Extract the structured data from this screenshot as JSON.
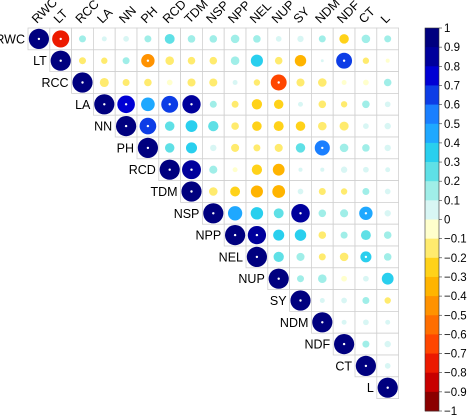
{
  "chart_data": {
    "type": "heatmap",
    "style": "upper-triangle correlation matrix, circles sized and colored by coefficient",
    "variables": [
      "RWC",
      "LT",
      "RCC",
      "LA",
      "NN",
      "PH",
      "RCD",
      "TDM",
      "NSP",
      "NPP",
      "NEL",
      "NUP",
      "SY",
      "NDM",
      "NDF",
      "CT",
      "L"
    ],
    "matrix": [
      [
        1,
        -0.72,
        0.12,
        0.06,
        0.08,
        0.12,
        0.24,
        0.14,
        0.14,
        0.18,
        0.14,
        0.08,
        0.1,
        0.12,
        -0.22,
        0.18,
        0.12
      ],
      [
        null,
        1,
        -0.12,
        -0.1,
        0.12,
        -0.44,
        -0.18,
        -0.14,
        -0.14,
        0.18,
        0.36,
        -0.14,
        -0.32,
        0.02,
        0.62,
        -0.1,
        -0.04
      ],
      [
        null,
        null,
        1,
        -0.2,
        -0.12,
        -0.14,
        -0.08,
        -0.16,
        -0.16,
        0.06,
        -0.1,
        -0.62,
        -0.16,
        -0.18,
        -0.06,
        -0.08,
        0.14
      ],
      [
        null,
        null,
        null,
        1,
        0.76,
        0.46,
        0.7,
        0.82,
        0.12,
        -0.12,
        -0.26,
        -0.22,
        0.06,
        -0.14,
        -0.1,
        0.14,
        0.08
      ],
      [
        null,
        null,
        null,
        null,
        1,
        0.68,
        0.22,
        0.34,
        0.26,
        -0.14,
        -0.22,
        -0.24,
        -0.22,
        -0.18,
        -0.2,
        0.08,
        0.1
      ],
      [
        null,
        null,
        null,
        null,
        null,
        1,
        0.22,
        0.3,
        0.1,
        -0.16,
        -0.12,
        -0.16,
        0.22,
        0.56,
        0.18,
        0.14,
        0.1
      ],
      [
        null,
        null,
        null,
        null,
        null,
        null,
        1,
        0.88,
        0.16,
        -0.06,
        -0.26,
        -0.34,
        0.04,
        0.04,
        0.1,
        0.08,
        0.06
      ],
      [
        null,
        null,
        null,
        null,
        null,
        null,
        null,
        1,
        -0.18,
        -0.24,
        -0.36,
        -0.4,
        0.08,
        -0.12,
        -0.1,
        0.12,
        0.08
      ],
      [
        null,
        null,
        null,
        null,
        null,
        null,
        null,
        null,
        1,
        0.5,
        0.38,
        0.24,
        0.84,
        0.14,
        0.16,
        0.44,
        0.1
      ],
      [
        null,
        null,
        null,
        null,
        null,
        null,
        null,
        null,
        null,
        1,
        0.82,
        0.3,
        0.32,
        -0.14,
        0.12,
        0.24,
        0.14
      ],
      [
        null,
        null,
        null,
        null,
        null,
        null,
        null,
        null,
        null,
        null,
        1,
        0.26,
        0.16,
        -0.12,
        -0.18,
        0.3,
        0.14
      ],
      [
        null,
        null,
        null,
        null,
        null,
        null,
        null,
        null,
        null,
        null,
        null,
        1,
        0.12,
        0.18,
        -0.08,
        0.08,
        0.34
      ],
      [
        null,
        null,
        null,
        null,
        null,
        null,
        null,
        null,
        null,
        null,
        null,
        null,
        1,
        0.06,
        0.08,
        0.12,
        -0.1
      ],
      [
        null,
        null,
        null,
        null,
        null,
        null,
        null,
        null,
        null,
        null,
        null,
        null,
        null,
        1,
        0.06,
        0.08,
        0.06
      ],
      [
        null,
        null,
        null,
        null,
        null,
        null,
        null,
        null,
        null,
        null,
        null,
        null,
        null,
        null,
        1,
        0.12,
        0.1
      ],
      [
        null,
        null,
        null,
        null,
        null,
        null,
        null,
        null,
        null,
        null,
        null,
        null,
        null,
        null,
        null,
        1,
        0.08
      ],
      [
        null,
        null,
        null,
        null,
        null,
        null,
        null,
        null,
        null,
        null,
        null,
        null,
        null,
        null,
        null,
        null,
        1
      ]
    ],
    "significant": [
      [
        0,
        1
      ],
      [
        1,
        5
      ],
      [
        1,
        14
      ],
      [
        2,
        11
      ],
      [
        3,
        4
      ],
      [
        3,
        6
      ],
      [
        3,
        7
      ],
      [
        4,
        5
      ],
      [
        5,
        13
      ],
      [
        6,
        7
      ],
      [
        8,
        12
      ],
      [
        8,
        15
      ],
      [
        9,
        10
      ],
      [
        10,
        15
      ]
    ],
    "colorbar": {
      "range": [
        -1,
        1
      ],
      "ticks": [
        "1",
        "0.9",
        "0.8",
        "0.7",
        "0.6",
        "0.5",
        "0.4",
        "0.3",
        "0.2",
        "0.1",
        "0",
        "−0.1",
        "−0.2",
        "−0.3",
        "−0.4",
        "−0.5",
        "−0.6",
        "−0.7",
        "−0.8",
        "−0.9",
        "−1"
      ],
      "colors": [
        "#00007f",
        "#00009c",
        "#0000d4",
        "#0d3de6",
        "#1a7fff",
        "#1fa8ff",
        "#29cfee",
        "#5fe0e6",
        "#a0eee8",
        "#d8f6f4",
        "#ffffcc",
        "#ffeb6e",
        "#ffd219",
        "#ffb400",
        "#ff9200",
        "#ff6e00",
        "#ff4600",
        "#ec1a00",
        "#c80000",
        "#8b0000"
      ]
    },
    "grid": true,
    "legend_position": "right"
  }
}
